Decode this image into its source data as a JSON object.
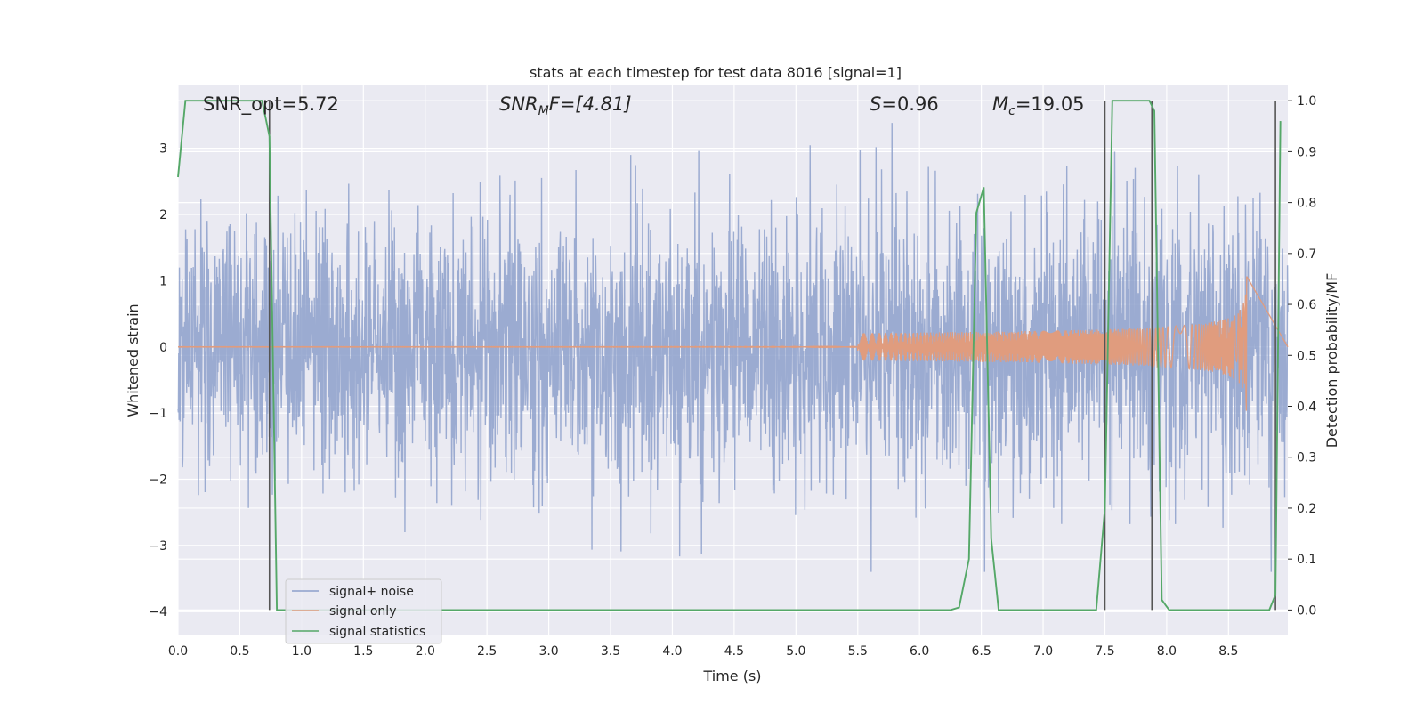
{
  "chart_data": {
    "type": "line",
    "title": "stats at each timestep for test data 8016 [signal=1]",
    "xlabel": "Time (s)",
    "ylabel_left": "Whitened strain",
    "ylabel_right": "Detection probability/MF",
    "xlim": [
      0.0,
      8.98
    ],
    "ylim_left": [
      -4.36,
      3.95
    ],
    "ylim_right": [
      -0.05,
      1.03
    ],
    "x_ticks": [
      "0.0",
      "0.5",
      "1.0",
      "1.5",
      "2.0",
      "2.5",
      "3.0",
      "3.5",
      "4.0",
      "4.5",
      "5.0",
      "5.5",
      "6.0",
      "6.5",
      "7.0",
      "7.5",
      "8.0",
      "8.5"
    ],
    "y_ticks_left": [
      "3",
      "2",
      "1",
      "0",
      "−1",
      "−2",
      "−3",
      "−4"
    ],
    "y_ticks_right": [
      "1.0",
      "0.9",
      "0.8",
      "0.7",
      "0.6",
      "0.5",
      "0.4",
      "0.3",
      "0.2",
      "0.1",
      "0.0"
    ],
    "grid": true,
    "legend_position": "lower-left",
    "annotations": {
      "snr_opt": "SNR_opt=5.72",
      "snr_mf_base": "SNR",
      "snr_mf_sub": "M",
      "snr_mf_rest": "F=[4.81]",
      "s_sym": "S",
      "s_val": "=0.96",
      "mc_sym": "M",
      "mc_sub": "c",
      "mc_val": "=19.05"
    },
    "series": [
      {
        "name": "signal+ noise",
        "color": "#8da0cb",
        "description_values": "noisy whitened strain, approx range -3.4 to 3.6"
      },
      {
        "name": "signal only",
        "color": "#e09c7e",
        "chirp_end": 8.65,
        "chirp_peak_amplitude": 1.1
      },
      {
        "name": "signal statistics",
        "color": "#55a868",
        "x": [
          0.0,
          0.06,
          0.12,
          0.5,
          0.68,
          0.74,
          0.8,
          6.25,
          6.32,
          6.4,
          6.46,
          6.52,
          6.58,
          6.64,
          7.43,
          7.5,
          7.56,
          7.86,
          7.9,
          7.96,
          8.02,
          8.83,
          8.88,
          8.92
        ],
        "y": [
          0.85,
          1.0,
          1.0,
          1.0,
          1.0,
          0.93,
          0.0,
          0.0,
          0.005,
          0.1,
          0.78,
          0.83,
          0.14,
          0.0,
          0.0,
          0.2,
          1.0,
          1.0,
          0.98,
          0.02,
          0.0,
          0.0,
          0.03,
          0.96
        ]
      }
    ],
    "vertical_markers": [
      0.74,
      7.5,
      7.88,
      8.88
    ]
  },
  "legend": {
    "items": [
      "signal+ noise",
      "signal only",
      "signal statistics"
    ]
  },
  "colors": {
    "plot_bg": "#eaeaf2",
    "grid": "#ffffff",
    "noise": "#8da0cb",
    "signal": "#e09c7e",
    "stats": "#55a868",
    "marker": "#555555"
  }
}
